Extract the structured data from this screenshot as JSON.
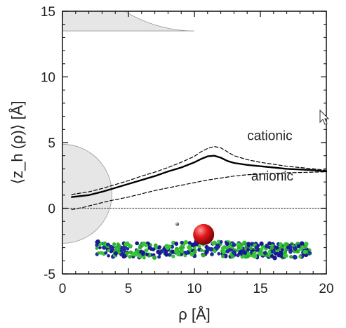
{
  "chart_data": {
    "type": "line",
    "xlabel": "ρ [Å]",
    "ylabel": "⟨z_h (ρ)⟩ [Å]",
    "xlim": [
      0,
      20
    ],
    "ylim": [
      -5,
      15
    ],
    "x_ticks": [
      0,
      5,
      10,
      15,
      20
    ],
    "y_ticks": [
      -5,
      0,
      5,
      10,
      15
    ],
    "grid": false,
    "legend": "none",
    "series": [
      {
        "style": "solid",
        "x": [
          0.7,
          2,
          3,
          4,
          5,
          6,
          7,
          8,
          9,
          10,
          10.5,
          11,
          11.5,
          12,
          12.5,
          13,
          14,
          15,
          16,
          17,
          18,
          19,
          20
        ],
        "y": [
          0.85,
          1.0,
          1.25,
          1.55,
          1.85,
          2.15,
          2.45,
          2.8,
          3.1,
          3.5,
          3.75,
          3.95,
          4.0,
          3.85,
          3.6,
          3.45,
          3.3,
          3.2,
          3.1,
          3.0,
          2.95,
          2.9,
          2.8
        ]
      },
      {
        "style": "dashed",
        "x": [
          0.7,
          2,
          3,
          4,
          5,
          6,
          7,
          8,
          9,
          10,
          10.5,
          11,
          11.5,
          12,
          12.5,
          13,
          14,
          15,
          16,
          17,
          18,
          19,
          20
        ],
        "y": [
          1.05,
          1.25,
          1.5,
          1.8,
          2.1,
          2.45,
          2.75,
          3.1,
          3.5,
          3.95,
          4.3,
          4.55,
          4.7,
          4.6,
          4.3,
          4.0,
          3.7,
          3.5,
          3.35,
          3.2,
          3.1,
          3.0,
          2.9
        ]
      },
      {
        "style": "dashed",
        "x": [
          0.7,
          1.5,
          2.5,
          3.5,
          5,
          6,
          7,
          8,
          9,
          10,
          11,
          12,
          13,
          14,
          15,
          16,
          17,
          18,
          19,
          20
        ],
        "y": [
          -0.1,
          0.05,
          0.3,
          0.55,
          0.85,
          1.1,
          1.35,
          1.55,
          1.75,
          1.95,
          2.15,
          2.3,
          2.45,
          2.55,
          2.6,
          2.65,
          2.7,
          2.72,
          2.75,
          2.78
        ]
      },
      {
        "style": "dotted",
        "x": [
          0,
          20
        ],
        "y": [
          0,
          0
        ]
      }
    ],
    "annotations": [
      {
        "text": "cationic",
        "x": 14,
        "y": 5.2
      },
      {
        "text": "anionic",
        "x": 14.3,
        "y": 2.1
      }
    ],
    "shapes": [
      {
        "kind": "large-gray-quarter-disk",
        "color": "#e6e6e6"
      },
      {
        "kind": "small-gray-disk",
        "color": "#e6e6e6"
      },
      {
        "kind": "red-sphere",
        "color": "#e41a1c"
      },
      {
        "kind": "membrane-particles",
        "colors": [
          "#1f2a9e",
          "#2bb02b",
          "#19198f",
          "#37c637"
        ]
      }
    ],
    "colors": {
      "line": "#000000",
      "shape": "#e6e6e6",
      "edge": "#999999",
      "sphere": "#e41a1c"
    }
  }
}
